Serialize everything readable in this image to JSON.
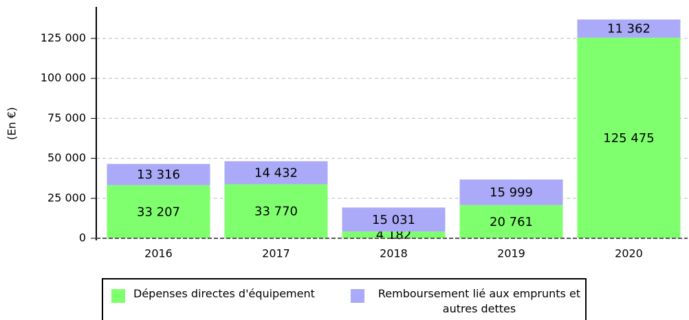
{
  "chart_data": {
    "type": "stacked_bar",
    "y_label": "(En €)",
    "categories": [
      "2016",
      "2017",
      "2018",
      "2019",
      "2020"
    ],
    "series": [
      {
        "name": "Dépenses directes d'équipement",
        "color": "#80ff6e",
        "values": [
          33207,
          33770,
          4182,
          20761,
          125475
        ],
        "value_labels": [
          "33 207",
          "33 770",
          "4 182",
          "20 761",
          "125 475"
        ]
      },
      {
        "name": "Remboursement lié aux emprunts et autres dettes",
        "color": "#aaaaf8",
        "values": [
          13316,
          14432,
          15031,
          15999,
          11362
        ],
        "value_labels": [
          "13 316",
          "14 432",
          "15 031",
          "15 999",
          "11 362"
        ]
      }
    ],
    "ylim": [
      0,
      145000
    ],
    "yticks": [
      0,
      {
        "value": 25000,
        "label": "25 000"
      },
      {
        "value": 50000,
        "label": "50 000"
      },
      {
        "value": 75000,
        "label": "75 000"
      },
      {
        "value": 100000,
        "label": "100 000"
      },
      {
        "value": 125000,
        "label": "125 000"
      }
    ],
    "grid": true
  }
}
